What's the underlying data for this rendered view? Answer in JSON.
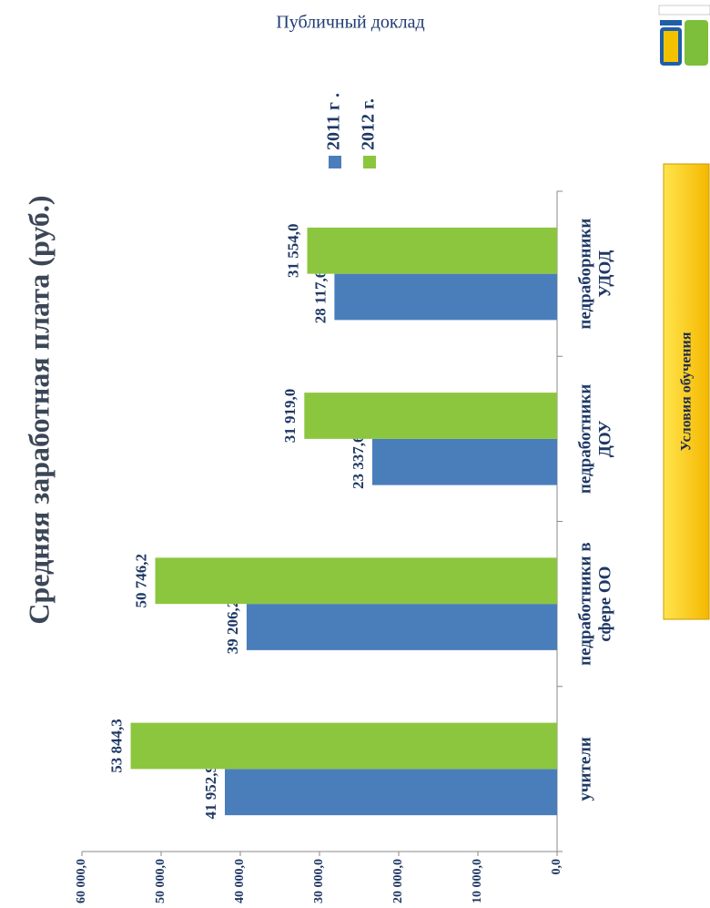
{
  "header": {
    "title": "Публичный доклад"
  },
  "button": {
    "label": "Условия обучения"
  },
  "chart_data": {
    "type": "bar",
    "title": "Средняя заработная плата (руб.)",
    "categories": [
      [
        "учители"
      ],
      [
        "педработники в",
        "сфере ОО"
      ],
      [
        "педработники",
        "ДОУ"
      ],
      [
        "педраборники",
        "УДОД"
      ]
    ],
    "series": [
      {
        "name": "2011 г .",
        "color": "#4a7ebb",
        "values": [
          41952.9,
          39206.2,
          23337.6,
          28117.6
        ],
        "value_labels": [
          "41 952,9",
          "39 206,2",
          "23 337,6",
          "28 117,6"
        ]
      },
      {
        "name": "2012 г.",
        "color": "#8cc63f",
        "values": [
          53844.3,
          50746.2,
          31919.0,
          31554.0
        ],
        "value_labels": [
          "53 844,3",
          "50 746,2",
          "31 919,0",
          "31 554,0"
        ]
      }
    ],
    "ylim": [
      0,
      60000
    ],
    "yticks": [
      {
        "value": 0,
        "label": "0,0"
      },
      {
        "value": 10000,
        "label": "10 000,0"
      },
      {
        "value": 20000,
        "label": "20 000,0"
      },
      {
        "value": 30000,
        "label": "30 000,0"
      },
      {
        "value": 40000,
        "label": "40 000,0"
      },
      {
        "value": 50000,
        "label": "50 000,0"
      },
      {
        "value": 60000,
        "label": "60 000,0"
      }
    ],
    "legend": "right"
  }
}
